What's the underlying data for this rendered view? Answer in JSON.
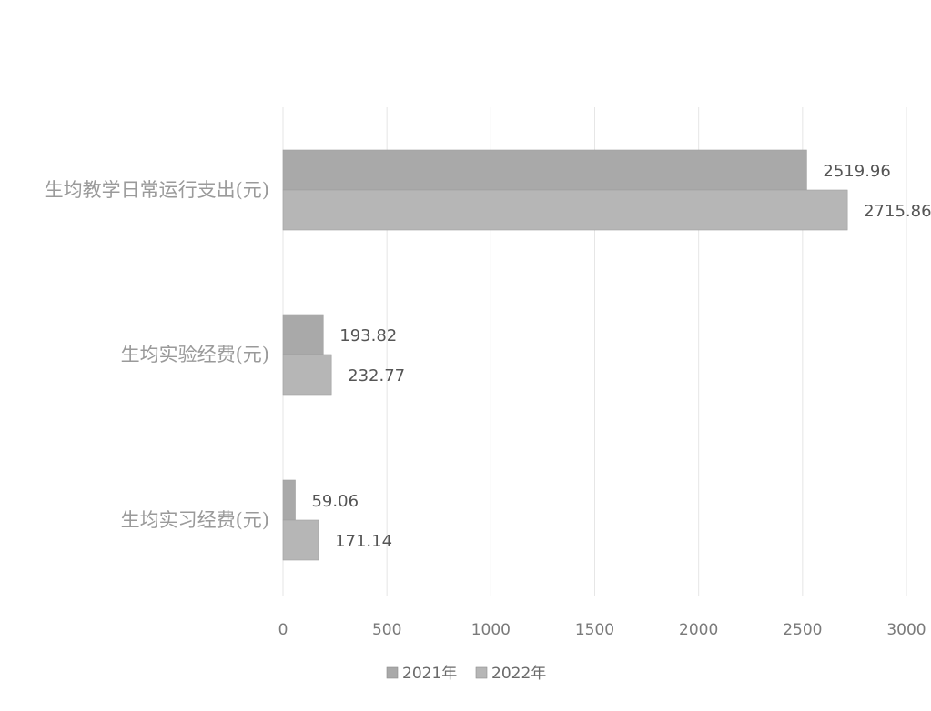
{
  "chart_data": {
    "type": "bar",
    "orientation": "horizontal",
    "categories": [
      "生均教学日常运行支出(元)",
      "生均实验经费(元)",
      "生均实习经费(元)"
    ],
    "series": [
      {
        "name": "2021年",
        "values": [
          2519.96,
          193.82,
          59.06
        ]
      },
      {
        "name": "2022年",
        "values": [
          2715.86,
          232.77,
          171.14
        ]
      }
    ],
    "data_labels": [
      [
        "2519.96",
        "193.82",
        "59.06"
      ],
      [
        "2715.86",
        "232.77",
        "171.14"
      ]
    ],
    "x_ticks": [
      "0",
      "500",
      "1000",
      "1500",
      "2000",
      "2500",
      "3000"
    ],
    "xlim": [
      0,
      3000
    ],
    "grid": true,
    "legend_position": "bottom",
    "colors": {
      "series_2021": "#a9a9a9",
      "series_2022": "#b6b6b6",
      "grid": "#e6e6e6",
      "text": "#555555",
      "category_text": "#9a9a9a"
    }
  }
}
